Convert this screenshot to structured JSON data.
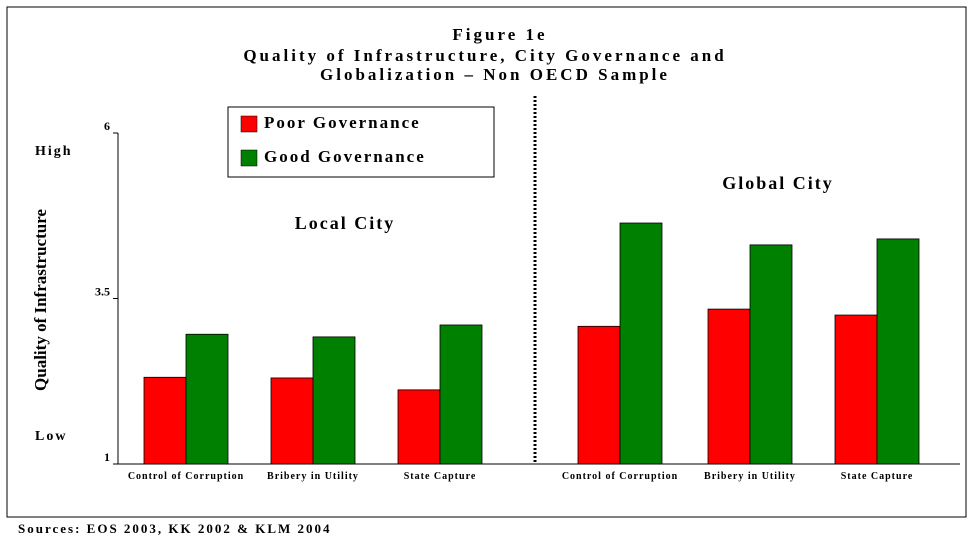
{
  "chart_data": {
    "type": "bar",
    "title": [
      "Figure 1e",
      "Quality of Infrastructure, City Governance and",
      "Globalization – Non OECD Sample"
    ],
    "y_label": "Quality of Infrastructure",
    "annotations": [
      "High",
      "Low",
      "Local City",
      "Global City"
    ],
    "source": "Sources: EOS 2003, KK 2002 & KLM 2004",
    "categories": [
      "Control of Corruption",
      "Bribery in Utility",
      "State Capture",
      "Control of Corruption",
      "Bribery in Utility",
      "State Capture"
    ],
    "series": [
      {
        "name": "Poor Governance",
        "color": "#ff0000",
        "values": [
          2.31,
          2.3,
          2.12,
          3.08,
          3.34,
          3.25
        ]
      },
      {
        "name": "Good Governance",
        "color": "#008000",
        "values": [
          2.96,
          2.92,
          3.1,
          4.64,
          4.31,
          4.4
        ]
      }
    ],
    "ylim": [
      1,
      6
    ],
    "yticks": [
      1,
      3.5,
      6
    ],
    "grid": false,
    "legend": "top-left"
  }
}
